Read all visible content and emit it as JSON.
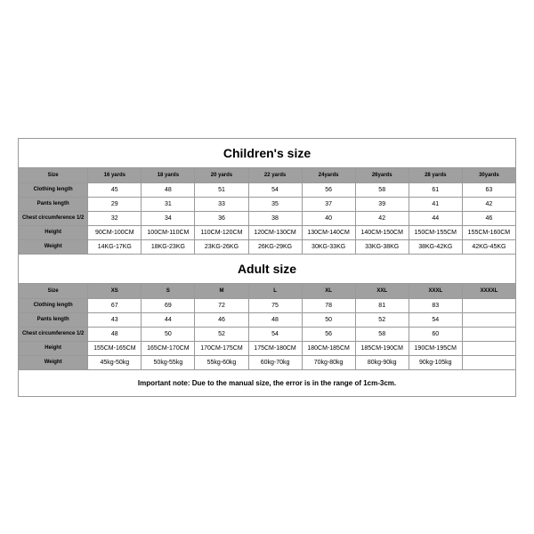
{
  "children_title": "Children's size",
  "adult_title": "Adult size",
  "note": "Important note: Due to the manual size, the error is in the range of 1cm-3cm.",
  "row_labels": {
    "size": "Size",
    "clothing": "Clothing length",
    "pants": "Pants length",
    "chest": "Chest circumference 1/2",
    "height": "Height",
    "weight": "Weight"
  },
  "children": {
    "sizes": [
      "16 yards",
      "18 yards",
      "20 yards",
      "22 yards",
      "24yards",
      "26yards",
      "28 yards",
      "30yards"
    ],
    "clothing": [
      "45",
      "48",
      "51",
      "54",
      "56",
      "58",
      "61",
      "63"
    ],
    "pants": [
      "29",
      "31",
      "33",
      "35",
      "37",
      "39",
      "41",
      "42"
    ],
    "chest": [
      "32",
      "34",
      "36",
      "38",
      "40",
      "42",
      "44",
      "46"
    ],
    "height": [
      "90CM-100CM",
      "100CM-110CM",
      "110CM-120CM",
      "120CM-130CM",
      "130CM-140CM",
      "140CM-150CM",
      "150CM-155CM",
      "155CM-160CM"
    ],
    "weight": [
      "14KG-17KG",
      "18KG-23KG",
      "23KG-26KG",
      "26KG-29KG",
      "30KG-33KG",
      "33KG-38KG",
      "38KG-42KG",
      "42KG-45KG"
    ]
  },
  "adult": {
    "sizes": [
      "XS",
      "S",
      "M",
      "L",
      "XL",
      "XXL",
      "XXXL",
      "XXXXL"
    ],
    "clothing": [
      "67",
      "69",
      "72",
      "75",
      "78",
      "81",
      "83",
      ""
    ],
    "pants": [
      "43",
      "44",
      "46",
      "48",
      "50",
      "52",
      "54",
      ""
    ],
    "chest": [
      "48",
      "50",
      "52",
      "54",
      "56",
      "58",
      "60",
      ""
    ],
    "height": [
      "155CM-165CM",
      "165CM-170CM",
      "170CM-175CM",
      "175CM-180CM",
      "180CM-185CM",
      "185CM-190CM",
      "190CM-195CM",
      ""
    ],
    "weight": [
      "45kg-50kg",
      "50kg-55kg",
      "55kg-60kg",
      "60kg-70kg",
      "70kg-80kg",
      "80kg-90kg",
      "90kg-105kg",
      ""
    ]
  }
}
